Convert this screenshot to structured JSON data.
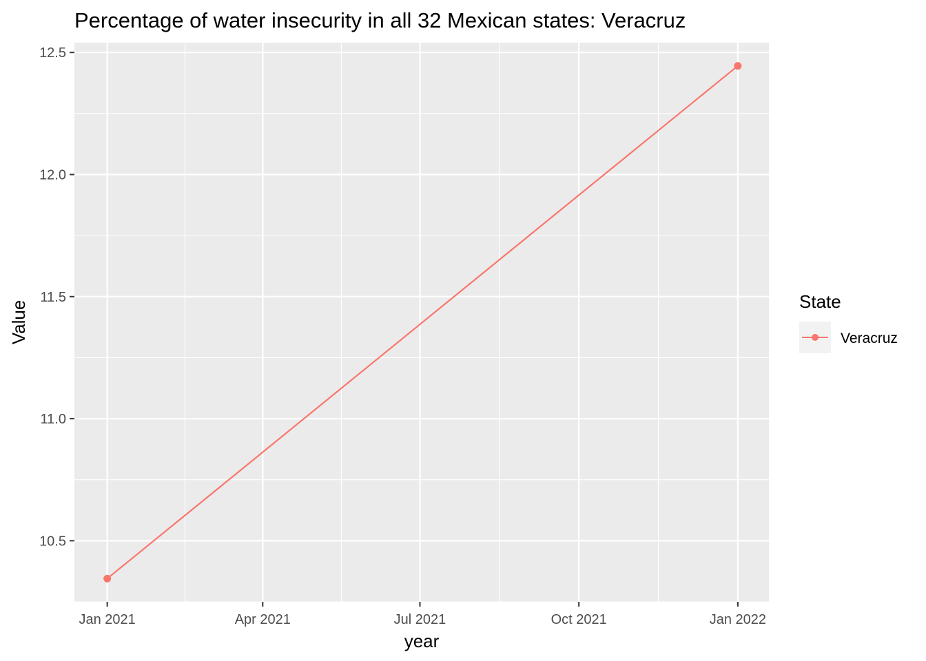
{
  "chart_data": {
    "type": "line",
    "title": "Percentage of water insecurity in all 32 Mexican states: Veracruz",
    "xlabel": "year",
    "ylabel": "Value",
    "x_ticks": [
      "Jan 2021",
      "Apr 2021",
      "Jul 2021",
      "Oct 2021",
      "Jan 2022"
    ],
    "y_ticks": [
      "10.5",
      "11.0",
      "11.5",
      "12.0",
      "12.5"
    ],
    "y_tick_values": [
      10.5,
      11.0,
      11.5,
      12.0,
      12.5
    ],
    "ylim": [
      10.25,
      12.54
    ],
    "xlim": [
      "2020-12-13",
      "2022-01-19"
    ],
    "grid": true,
    "legend": {
      "title": "State",
      "placement": "right"
    },
    "series": [
      {
        "name": "Veracruz",
        "color": "#F8766D",
        "points": [
          {
            "x": "2021-01-01",
            "y": 10.345
          },
          {
            "x": "2022-01-01",
            "y": 12.445
          }
        ]
      }
    ],
    "colors": {
      "panel": "#EBEBEB",
      "grid": "#FFFFFF",
      "legend_key_bg": "#F2F2F2"
    }
  }
}
